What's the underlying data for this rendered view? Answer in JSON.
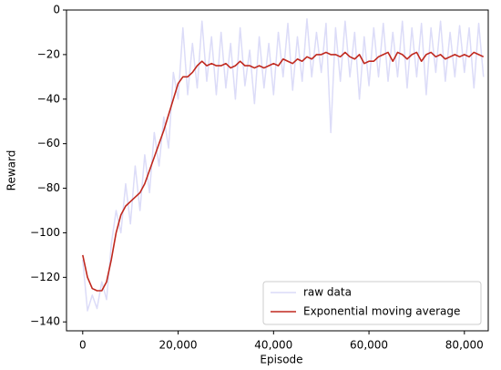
{
  "chart_data": {
    "type": "line",
    "xlabel": "Episode",
    "ylabel": "Reward",
    "x": [
      0,
      1000,
      2000,
      3000,
      4000,
      5000,
      6000,
      7000,
      8000,
      9000,
      10000,
      11000,
      12000,
      13000,
      14000,
      15000,
      16000,
      17000,
      18000,
      19000,
      20000,
      21000,
      22000,
      23000,
      24000,
      25000,
      26000,
      27000,
      28000,
      29000,
      30000,
      31000,
      32000,
      33000,
      34000,
      35000,
      36000,
      37000,
      38000,
      39000,
      40000,
      41000,
      42000,
      43000,
      44000,
      45000,
      46000,
      47000,
      48000,
      49000,
      50000,
      51000,
      52000,
      53000,
      54000,
      55000,
      56000,
      57000,
      58000,
      59000,
      60000,
      61000,
      62000,
      63000,
      64000,
      65000,
      66000,
      67000,
      68000,
      69000,
      70000,
      71000,
      72000,
      73000,
      74000,
      75000,
      76000,
      77000,
      78000,
      79000,
      80000,
      81000,
      82000,
      83000,
      84000
    ],
    "series": [
      {
        "name": "raw data",
        "color": "#dcdcf8",
        "width": 1.5,
        "values": [
          -112,
          -135,
          -128,
          -134,
          -122,
          -130,
          -105,
          -90,
          -100,
          -78,
          -96,
          -70,
          -90,
          -65,
          -82,
          -55,
          -70,
          -48,
          -62,
          -28,
          -40,
          -8,
          -38,
          -15,
          -35,
          -5,
          -32,
          -12,
          -38,
          -10,
          -35,
          -15,
          -40,
          -8,
          -34,
          -18,
          -42,
          -12,
          -35,
          -15,
          -38,
          -10,
          -30,
          -6,
          -36,
          -12,
          -32,
          -4,
          -30,
          -10,
          -28,
          -6,
          -55,
          -8,
          -32,
          -5,
          -30,
          -10,
          -40,
          -12,
          -34,
          -8,
          -30,
          -6,
          -32,
          -10,
          -30,
          -5,
          -35,
          -8,
          -30,
          -6,
          -38,
          -8,
          -28,
          -5,
          -32,
          -10,
          -30,
          -7,
          -28,
          -8,
          -35,
          -6,
          -30
        ]
      },
      {
        "name": "Exponential moving average",
        "color": "#c0281e",
        "width": 1.6,
        "values": [
          -110,
          -120,
          -125,
          -126,
          -126,
          -122,
          -112,
          -100,
          -92,
          -88,
          -86,
          -84,
          -82,
          -78,
          -72,
          -66,
          -60,
          -54,
          -47,
          -40,
          -33,
          -30,
          -30,
          -28,
          -25,
          -23,
          -25,
          -24,
          -25,
          -25,
          -24,
          -26,
          -25,
          -23,
          -25,
          -25,
          -26,
          -25,
          -26,
          -25,
          -24,
          -25,
          -22,
          -23,
          -24,
          -22,
          -23,
          -21,
          -22,
          -20,
          -20,
          -19,
          -20,
          -20,
          -21,
          -19,
          -21,
          -22,
          -20,
          -24,
          -23,
          -23,
          -21,
          -20,
          -19,
          -23,
          -19,
          -20,
          -22,
          -20,
          -19,
          -23,
          -20,
          -19,
          -21,
          -20,
          -22,
          -21,
          -20,
          -21,
          -20,
          -21,
          -19,
          -20,
          -21
        ]
      }
    ],
    "xlim": [
      -3400,
      85000
    ],
    "ylim": [
      -144,
      0
    ],
    "xticks": [
      0,
      {
        "value": 20000,
        "label": "20,000"
      },
      {
        "value": 40000,
        "label": "40,000"
      },
      {
        "value": 60000,
        "label": "60,000"
      },
      {
        "value": 80000,
        "label": "80,000"
      }
    ],
    "yticks": [
      {
        "value": -140,
        "label": "−140"
      },
      {
        "value": -120,
        "label": "−120"
      },
      {
        "value": -100,
        "label": "−100"
      },
      {
        "value": -80,
        "label": "−80"
      },
      {
        "value": -60,
        "label": "−60"
      },
      {
        "value": -40,
        "label": "−40"
      },
      {
        "value": -20,
        "label": "−20"
      },
      0
    ],
    "grid": false,
    "legend": "lower right"
  }
}
